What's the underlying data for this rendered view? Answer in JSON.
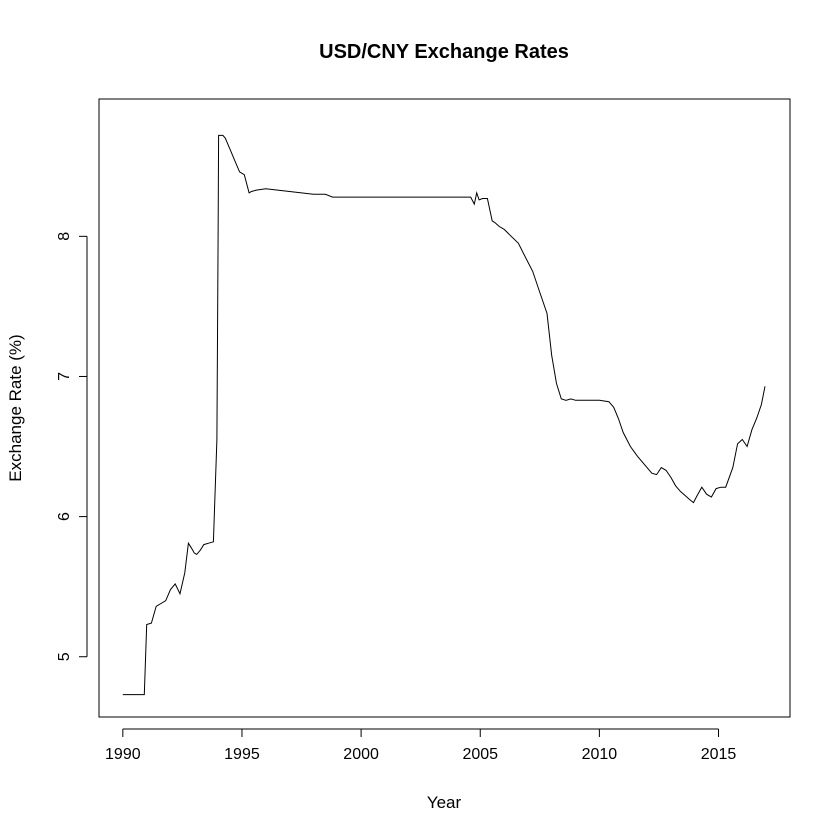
{
  "chart_data": {
    "type": "line",
    "title": "USD/CNY Exchange Rates",
    "xlabel": "Year",
    "ylabel": "Exchange Rate (%)",
    "xlim": [
      1989.0,
      2018.0
    ],
    "ylim": [
      4.57,
      8.98
    ],
    "x_ticks": [
      1990,
      1995,
      2000,
      2005,
      2010,
      2015
    ],
    "y_ticks": [
      5,
      6,
      7,
      8
    ],
    "grid": false,
    "legend": "none",
    "line_color": "#000000",
    "series": [
      {
        "x": [
          1990.0,
          1990.5,
          1990.75,
          1990.9,
          1991.0,
          1991.2,
          1991.4,
          1991.6,
          1991.8,
          1992.0,
          1992.2,
          1992.4,
          1992.6,
          1992.75,
          1992.9,
          1993.0,
          1993.1,
          1993.25,
          1993.4,
          1993.6,
          1993.8,
          1993.95,
          1994.0,
          1994.02,
          1994.2,
          1994.3,
          1994.5,
          1994.7,
          1994.9,
          1995.1,
          1995.3,
          1995.4,
          1995.6,
          1996.0,
          1996.5,
          1997.0,
          1997.5,
          1998.0,
          1998.5,
          1998.8,
          1999.0,
          2000.0,
          2001.0,
          2002.0,
          2003.0,
          2004.0,
          2004.6,
          2004.75,
          2004.85,
          2004.95,
          2005.1,
          2005.3,
          2005.5,
          2005.6,
          2005.8,
          2006.0,
          2006.3,
          2006.6,
          2006.9,
          2007.2,
          2007.5,
          2007.8,
          2008.0,
          2008.2,
          2008.4,
          2008.6,
          2008.8,
          2009.0,
          2009.5,
          2010.0,
          2010.4,
          2010.6,
          2010.8,
          2011.0,
          2011.3,
          2011.6,
          2011.9,
          2012.2,
          2012.4,
          2012.6,
          2012.8,
          2013.0,
          2013.2,
          2013.4,
          2013.6,
          2013.8,
          2013.95,
          2014.1,
          2014.3,
          2014.5,
          2014.7,
          2014.9,
          2015.1,
          2015.3,
          2015.6,
          2015.8,
          2016.0,
          2016.2,
          2016.4,
          2016.6,
          2016.8,
          2016.95
        ],
        "y": [
          4.73,
          4.73,
          4.73,
          4.73,
          5.23,
          5.24,
          5.36,
          5.38,
          5.4,
          5.48,
          5.52,
          5.45,
          5.6,
          5.81,
          5.77,
          5.74,
          5.73,
          5.76,
          5.8,
          5.81,
          5.82,
          6.55,
          8.0,
          8.72,
          8.72,
          8.7,
          8.62,
          8.54,
          8.46,
          8.44,
          8.31,
          8.32,
          8.33,
          8.34,
          8.33,
          8.32,
          8.31,
          8.3,
          8.3,
          8.28,
          8.28,
          8.28,
          8.28,
          8.28,
          8.28,
          8.28,
          8.28,
          8.23,
          8.31,
          8.26,
          8.27,
          8.27,
          8.11,
          8.1,
          8.07,
          8.05,
          8.0,
          7.95,
          7.85,
          7.75,
          7.6,
          7.45,
          7.15,
          6.95,
          6.84,
          6.83,
          6.84,
          6.83,
          6.83,
          6.83,
          6.82,
          6.78,
          6.7,
          6.6,
          6.5,
          6.43,
          6.37,
          6.31,
          6.3,
          6.35,
          6.33,
          6.28,
          6.22,
          6.18,
          6.15,
          6.12,
          6.1,
          6.15,
          6.21,
          6.16,
          6.14,
          6.2,
          6.21,
          6.21,
          6.35,
          6.52,
          6.55,
          6.5,
          6.62,
          6.7,
          6.8,
          6.93
        ]
      }
    ]
  }
}
